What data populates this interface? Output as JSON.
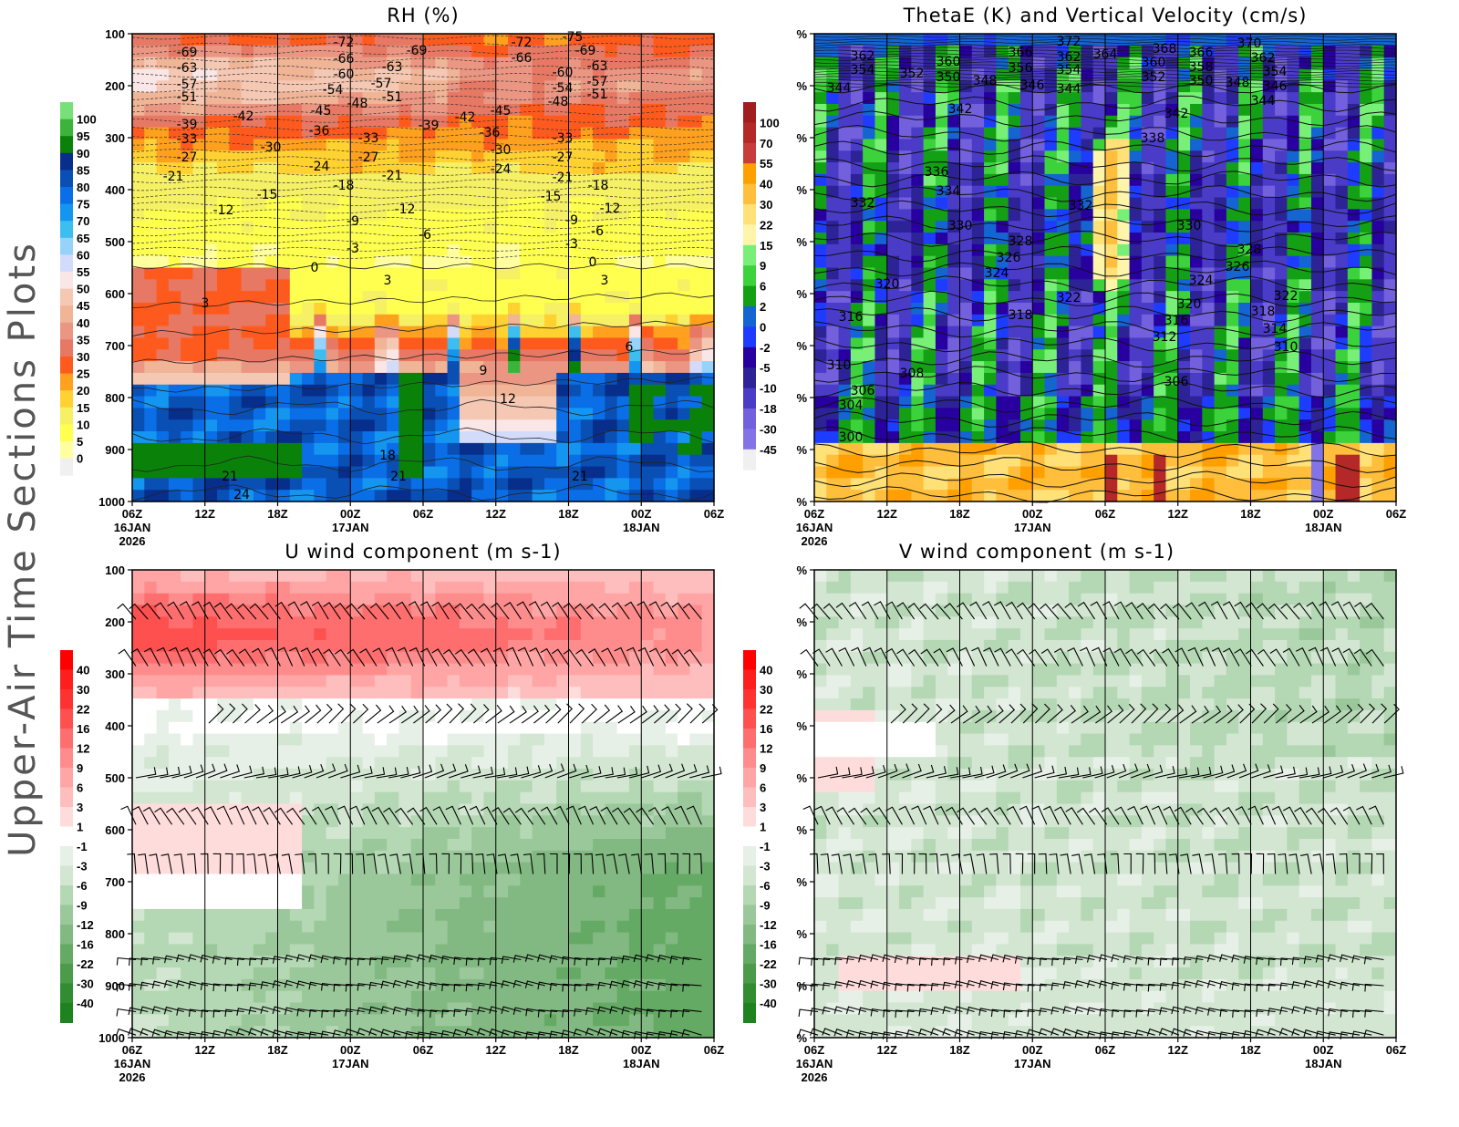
{
  "figure_title": "Upper-Air Time Sections Plots",
  "x_axis": {
    "ticks": [
      "06Z",
      "12Z",
      "18Z",
      "00Z",
      "06Z",
      "12Z",
      "18Z",
      "00Z",
      "06Z"
    ],
    "date_labels": [
      {
        "tick": 0,
        "text": "16JAN",
        "year": "2026"
      },
      {
        "tick": 3,
        "text": "17JAN"
      },
      {
        "tick": 7,
        "text": "18JAN"
      }
    ]
  },
  "chart_data": [
    {
      "type": "heatmap",
      "title": "RH (%)",
      "y_ticks": [
        "100",
        "200",
        "300",
        "400",
        "500",
        "600",
        "700",
        "800",
        "900",
        "1000"
      ],
      "colorbar": {
        "levels": [
          0,
          5,
          10,
          15,
          20,
          25,
          30,
          35,
          40,
          45,
          50,
          55,
          60,
          65,
          70,
          75,
          80,
          85,
          90,
          95,
          100
        ],
        "colors": [
          "#f0f0f0",
          "#ffffa0",
          "#ffff50",
          "#f5f064",
          "#ffd232",
          "#ffa01e",
          "#ff5a1e",
          "#e67864",
          "#eb9682",
          "#f0b496",
          "#f5c8b4",
          "#fae6e6",
          "#d2dcfa",
          "#96d2fa",
          "#3cbef0",
          "#1496f0",
          "#0a6ee6",
          "#0a50b4",
          "#082e8c",
          "#0a820a",
          "#3cb43c",
          "#78e078"
        ]
      },
      "contour_labels": [
        "-72",
        "-69",
        "-69",
        "-66",
        "-63",
        "-60",
        "-57",
        "-54",
        "-51",
        "-63",
        "-57",
        "-51",
        "-48",
        "-45",
        "-42",
        "-39",
        "-36",
        "-33",
        "-30",
        "-33",
        "-27",
        "-24",
        "-27",
        "-21",
        "-21",
        "-18",
        "-15",
        "-12",
        "-12",
        "-9",
        "-6",
        "-3",
        "0",
        "3",
        "3",
        "-39",
        "-42",
        "-45",
        "-36",
        "-30",
        "-24",
        "-72",
        "-75",
        "-66",
        "-69",
        "-63",
        "-60",
        "-57",
        "-54",
        "-51",
        "-48",
        "-33",
        "-27",
        "-21",
        "-18",
        "-15",
        "-12",
        "-9",
        "-6",
        "-3",
        "0",
        "3",
        "6",
        "9",
        "12",
        "18",
        "21",
        "21",
        "24",
        "21"
      ]
    },
    {
      "type": "heatmap",
      "title": "ThetaE (K) and Vertical Velocity (cm/s)",
      "y_ticks": [
        "%",
        "%",
        "%",
        "%",
        "%",
        "%",
        "%",
        "%",
        "%",
        "%"
      ],
      "colorbar": {
        "levels": [
          -45,
          -30,
          -18,
          -10,
          -5,
          -2,
          0,
          2,
          6,
          9,
          15,
          22,
          30,
          40,
          55,
          70,
          100
        ],
        "colors": [
          "#f0f0f0",
          "#8274e6",
          "#7360dc",
          "#4b3cc8",
          "#2d2396",
          "#2800a0",
          "#1e3cff",
          "#1464d2",
          "#14a014",
          "#3cd23c",
          "#78f078",
          "#fff5aa",
          "#ffe178",
          "#ffbe3c",
          "#ffa000",
          "#c83c3c",
          "#b42828",
          "#a01e1e"
        ]
      },
      "contour_labels": [
        "362",
        "354",
        "352",
        "360",
        "350",
        "348",
        "366",
        "356",
        "346",
        "372",
        "362",
        "364",
        "354",
        "344",
        "368",
        "360",
        "352",
        "366",
        "358",
        "350",
        "348",
        "370",
        "362",
        "354",
        "346",
        "344",
        "344",
        "342",
        "342",
        "338",
        "336",
        "334",
        "332",
        "332",
        "330",
        "330",
        "328",
        "326",
        "324",
        "328",
        "326",
        "324",
        "320",
        "322",
        "320",
        "322",
        "318",
        "316",
        "318",
        "316",
        "314",
        "312",
        "310",
        "310",
        "308",
        "306",
        "306",
        "304",
        "300"
      ]
    },
    {
      "type": "heatmap",
      "title": "U wind component (m s-1)",
      "y_ticks": [
        "100",
        "200",
        "300",
        "400",
        "500",
        "600",
        "700",
        "800",
        "900",
        "1000"
      ],
      "colorbar": {
        "levels": [
          -40,
          -30,
          -22,
          -16,
          -12,
          -9,
          -6,
          -3,
          -1,
          1,
          3,
          6,
          9,
          12,
          16,
          22,
          30,
          40
        ],
        "colors": [
          "#1e821e",
          "#328c32",
          "#4b9b4b",
          "#64aa64",
          "#82b982",
          "#9bc89b",
          "#b4d7b4",
          "#d2e6d2",
          "#e6f0e6",
          "#ffffff",
          "#ffdcdc",
          "#ffbebe",
          "#ffa5a5",
          "#ff8c8c",
          "#ff6e6e",
          "#ff5050",
          "#ff3232",
          "#ff1e1e",
          "#ff0000"
        ]
      }
    },
    {
      "type": "heatmap",
      "title": "V wind component (m s-1)",
      "y_ticks": [
        "%",
        "%",
        "%",
        "%",
        "%",
        "%",
        "%",
        "%",
        "%",
        "%"
      ],
      "colorbar": {
        "levels": [
          -40,
          -30,
          -22,
          -16,
          -12,
          -9,
          -6,
          -3,
          -1,
          1,
          3,
          6,
          9,
          12,
          16,
          22,
          30,
          40
        ],
        "colors": [
          "#1e821e",
          "#328c32",
          "#4b9b4b",
          "#64aa64",
          "#82b982",
          "#9bc89b",
          "#b4d7b4",
          "#d2e6d2",
          "#e6f0e6",
          "#ffffff",
          "#ffdcdc",
          "#ffbebe",
          "#ffa5a5",
          "#ff8c8c",
          "#ff6e6e",
          "#ff5050",
          "#ff3232",
          "#ff1e1e",
          "#ff0000"
        ]
      }
    }
  ]
}
